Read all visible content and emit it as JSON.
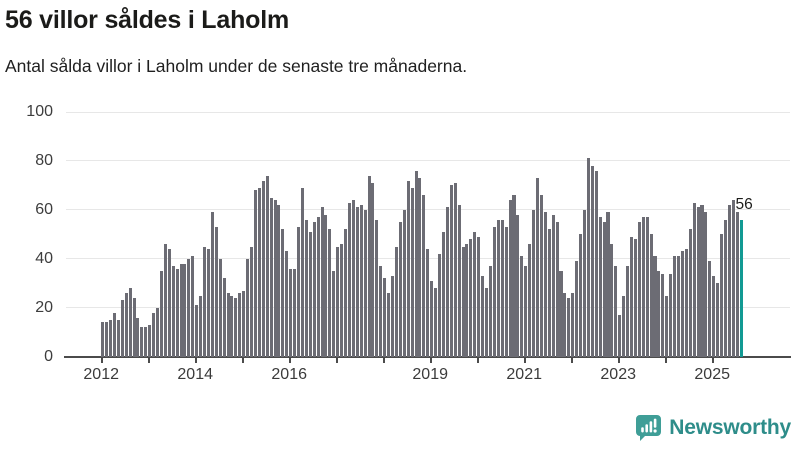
{
  "header": {
    "title": "56 villor såldes i Laholm",
    "subtitle": "Antal sålda villor i Laholm under de senaste tre månaderna."
  },
  "chart_data": {
    "type": "bar",
    "title": "56 villor såldes i Laholm",
    "x_start_month": "2012-01",
    "x_end_month": "2025-08",
    "values": [
      14,
      14,
      15,
      18,
      15,
      23,
      26,
      28,
      24,
      16,
      12,
      12,
      13,
      18,
      20,
      35,
      46,
      44,
      37,
      36,
      38,
      38,
      40,
      41,
      21,
      25,
      45,
      44,
      59,
      53,
      40,
      32,
      26,
      25,
      24,
      26,
      27,
      40,
      45,
      68,
      69,
      72,
      74,
      65,
      64,
      62,
      52,
      43,
      36,
      36,
      53,
      69,
      56,
      51,
      55,
      57,
      61,
      58,
      52,
      35,
      45,
      46,
      52,
      63,
      64,
      61,
      62,
      60,
      74,
      71,
      56,
      37,
      32,
      26,
      33,
      45,
      55,
      60,
      72,
      69,
      76,
      73,
      66,
      44,
      31,
      28,
      42,
      51,
      61,
      70,
      71,
      62,
      45,
      46,
      48,
      51,
      49,
      33,
      28,
      37,
      53,
      56,
      56,
      53,
      64,
      66,
      58,
      41,
      37,
      46,
      60,
      73,
      66,
      59,
      52,
      58,
      55,
      35,
      26,
      24,
      26,
      39,
      50,
      60,
      81,
      78,
      76,
      57,
      55,
      59,
      46,
      37,
      17,
      25,
      37,
      49,
      48,
      55,
      57,
      57,
      50,
      41,
      35,
      34,
      25,
      34,
      41,
      41,
      43,
      44,
      52,
      63,
      61,
      62,
      59,
      39,
      33,
      30,
      50,
      56,
      62,
      64,
      59,
      56
    ],
    "ylim": [
      0,
      100
    ],
    "yticks": [
      0,
      20,
      40,
      60,
      80,
      100
    ],
    "xtick_years_all": [
      2012,
      2013,
      2014,
      2015,
      2016,
      2017,
      2018,
      2019,
      2020,
      2021,
      2022,
      2023,
      2024,
      2025
    ],
    "xtick_years_labeled": [
      2012,
      2014,
      2016,
      2019,
      2021,
      2023,
      2025
    ],
    "grid": true,
    "legend": "none",
    "bar_color": "#6c6c74",
    "highlight": {
      "index": 163,
      "value": 56,
      "label": "56",
      "color": "#129a93"
    }
  },
  "branding": {
    "logo_text": "Newsworthy",
    "logo_color": "#2e8d8a",
    "logo_icon": "speech-bubble-bar-chart-icon"
  }
}
